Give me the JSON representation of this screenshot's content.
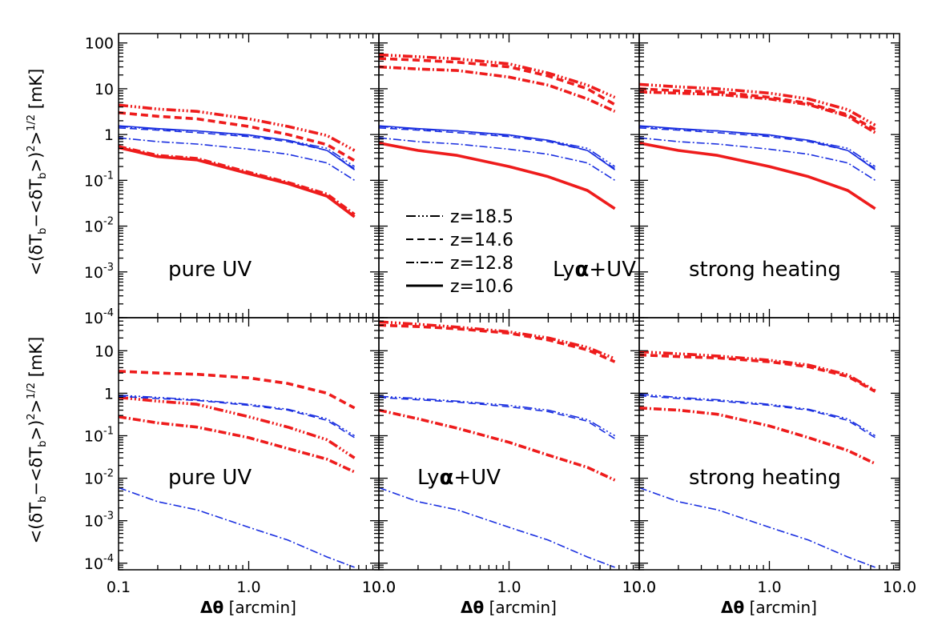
{
  "figure": {
    "ylabel": "<(δT",
    "ylabel_sub1": "b",
    "ylabel_mid": "−<δT",
    "ylabel_sub2": "b",
    "ylabel_tail": ">)",
    "ylabel_sup2": "2",
    "ylabel_end": ">",
    "ylabel_sup_half": "1/2",
    "ylabel_unit": "[mK]",
    "xlabel_symbol": "Δθ",
    "xlabel_unit": "[arcmin]"
  },
  "legend": {
    "placement": "top-middle panel, lower left",
    "entries": [
      {
        "label": "z=18.5",
        "style": "dash-triple-dot"
      },
      {
        "label": "z=14.6",
        "style": "dashed"
      },
      {
        "label": "z=12.8",
        "style": "dash-dot"
      },
      {
        "label": "z=10.6",
        "style": "solid"
      }
    ]
  },
  "colors": {
    "red": "#ee1c1c",
    "blue": "#1a2fe0",
    "frame": "#000000"
  },
  "x_axis": {
    "scale": "log",
    "range": [
      0.1,
      10.0
    ],
    "major_ticks": [
      0.1,
      1.0,
      10.0
    ],
    "tick_labels_per_panel": [
      [
        "0.1",
        "1.0",
        "10.0"
      ],
      [
        "10.0",
        "1.0",
        "10.0"
      ],
      [
        "10.0",
        "1.0",
        "10.0"
      ]
    ]
  },
  "y_axis": {
    "scale": "log",
    "top_row": {
      "range": [
        0.0001,
        160
      ],
      "ticks": [
        {
          "v": 100,
          "m": "100",
          "e": ""
        },
        {
          "v": 10,
          "m": "10",
          "e": ""
        },
        {
          "v": 1,
          "m": "1",
          "e": ""
        },
        {
          "v": 0.1,
          "m": "10",
          "e": "-1"
        },
        {
          "v": 0.01,
          "m": "10",
          "e": "-2"
        },
        {
          "v": 0.001,
          "m": "10",
          "e": "-3"
        },
        {
          "v": 0.0001,
          "m": "10",
          "e": "-4"
        }
      ]
    },
    "bottom_row": {
      "range": [
        7e-05,
        60
      ],
      "ticks": [
        {
          "v": 10,
          "m": "10",
          "e": ""
        },
        {
          "v": 1,
          "m": "1",
          "e": ""
        },
        {
          "v": 0.1,
          "m": "10",
          "e": "-1"
        },
        {
          "v": 0.01,
          "m": "10",
          "e": "-2"
        },
        {
          "v": 0.001,
          "m": "10",
          "e": "-3"
        },
        {
          "v": 0.0001,
          "m": "10",
          "e": "-4"
        }
      ]
    }
  },
  "chart_data": [
    {
      "type": "line",
      "panel": "top-left",
      "annotation": "pure UV",
      "x": [
        0.1,
        0.2,
        0.4,
        1.0,
        2.0,
        4.0,
        6.5
      ],
      "series": [
        {
          "z": "18.5",
          "color": "red",
          "width": "thick",
          "values": [
            4.4,
            3.6,
            3.2,
            2.2,
            1.5,
            0.95,
            0.45
          ]
        },
        {
          "z": "14.6",
          "color": "red",
          "width": "thick",
          "values": [
            3.0,
            2.5,
            2.2,
            1.5,
            1.0,
            0.6,
            0.27
          ]
        },
        {
          "z": "12.8",
          "color": "red",
          "width": "thick",
          "values": [
            0.55,
            0.35,
            0.3,
            0.15,
            0.09,
            0.05,
            0.018
          ]
        },
        {
          "z": "10.6",
          "color": "red",
          "width": "thick",
          "values": [
            0.52,
            0.33,
            0.28,
            0.14,
            0.085,
            0.045,
            0.016
          ]
        },
        {
          "z": "18.5",
          "color": "blue",
          "width": "thin",
          "values": [
            1.5,
            1.3,
            1.2,
            0.95,
            0.75,
            0.5,
            0.2
          ]
        },
        {
          "z": "14.6",
          "color": "blue",
          "width": "thin",
          "values": [
            1.4,
            1.25,
            1.1,
            0.9,
            0.7,
            0.45,
            0.18
          ]
        },
        {
          "z": "12.8",
          "color": "blue",
          "width": "thin",
          "values": [
            0.85,
            0.7,
            0.62,
            0.48,
            0.37,
            0.24,
            0.1
          ]
        },
        {
          "z": "10.6",
          "color": "blue",
          "width": "thin",
          "values": [
            1.55,
            1.35,
            1.2,
            0.98,
            0.75,
            0.45,
            0.17
          ]
        }
      ]
    },
    {
      "type": "line",
      "panel": "top-middle",
      "annotation": "Lyα+UV",
      "x": [
        0.1,
        0.2,
        0.4,
        1.0,
        2.0,
        4.0,
        6.5
      ],
      "series": [
        {
          "z": "18.5",
          "color": "red",
          "width": "thick",
          "values": [
            55,
            50,
            45,
            35,
            22,
            12,
            6.5
          ]
        },
        {
          "z": "14.6",
          "color": "red",
          "width": "thick",
          "values": [
            46,
            42,
            38,
            30,
            19,
            10,
            4.5
          ]
        },
        {
          "z": "12.8",
          "color": "red",
          "width": "thick",
          "values": [
            30,
            27,
            25,
            18,
            12,
            6,
            3.2
          ]
        },
        {
          "z": "10.6",
          "color": "red",
          "width": "thick",
          "values": [
            0.65,
            0.45,
            0.35,
            0.2,
            0.12,
            0.06,
            0.024
          ]
        },
        {
          "z": "18.5",
          "color": "blue",
          "width": "thin",
          "values": [
            1.5,
            1.3,
            1.2,
            0.95,
            0.75,
            0.5,
            0.2
          ]
        },
        {
          "z": "14.6",
          "color": "blue",
          "width": "thin",
          "values": [
            1.4,
            1.25,
            1.1,
            0.9,
            0.7,
            0.45,
            0.18
          ]
        },
        {
          "z": "12.8",
          "color": "blue",
          "width": "thin",
          "values": [
            0.85,
            0.7,
            0.62,
            0.48,
            0.37,
            0.24,
            0.1
          ]
        },
        {
          "z": "10.6",
          "color": "blue",
          "width": "thin",
          "values": [
            1.55,
            1.35,
            1.2,
            0.98,
            0.75,
            0.45,
            0.17
          ]
        }
      ]
    },
    {
      "type": "line",
      "panel": "top-right",
      "annotation": "strong heating",
      "x": [
        0.1,
        0.2,
        0.4,
        1.0,
        2.0,
        4.0,
        6.5
      ],
      "series": [
        {
          "z": "18.5",
          "color": "red",
          "width": "thick",
          "values": [
            12.5,
            11,
            10,
            8,
            6,
            3.5,
            1.6
          ]
        },
        {
          "z": "14.6",
          "color": "red",
          "width": "thick",
          "values": [
            10,
            9,
            8.5,
            6.5,
            4.8,
            2.7,
            1.3
          ]
        },
        {
          "z": "12.8",
          "color": "red",
          "width": "thick",
          "values": [
            8.5,
            8,
            7.5,
            6,
            4.5,
            2.5,
            1.1
          ]
        },
        {
          "z": "10.6",
          "color": "red",
          "width": "thick",
          "values": [
            0.65,
            0.45,
            0.35,
            0.2,
            0.12,
            0.06,
            0.024
          ]
        },
        {
          "z": "18.5",
          "color": "blue",
          "width": "thin",
          "values": [
            1.5,
            1.3,
            1.2,
            0.95,
            0.75,
            0.5,
            0.2
          ]
        },
        {
          "z": "14.6",
          "color": "blue",
          "width": "thin",
          "values": [
            1.4,
            1.25,
            1.1,
            0.9,
            0.7,
            0.45,
            0.18
          ]
        },
        {
          "z": "12.8",
          "color": "blue",
          "width": "thin",
          "values": [
            0.85,
            0.7,
            0.62,
            0.48,
            0.37,
            0.24,
            0.1
          ]
        },
        {
          "z": "10.6",
          "color": "blue",
          "width": "thin",
          "values": [
            1.55,
            1.35,
            1.2,
            0.98,
            0.75,
            0.45,
            0.17
          ]
        }
      ]
    },
    {
      "type": "line",
      "panel": "bottom-left",
      "annotation": "pure UV",
      "x": [
        0.1,
        0.2,
        0.4,
        1.0,
        2.0,
        4.0,
        6.5
      ],
      "series": [
        {
          "z": "14.6",
          "color": "red",
          "width": "thick",
          "values": [
            3.3,
            3.0,
            2.8,
            2.3,
            1.7,
            1.0,
            0.45
          ]
        },
        {
          "z": "18.5",
          "color": "red",
          "width": "thick",
          "values": [
            0.8,
            0.65,
            0.55,
            0.28,
            0.16,
            0.08,
            0.03
          ]
        },
        {
          "z": "12.8",
          "color": "red",
          "width": "thick",
          "values": [
            0.28,
            0.2,
            0.16,
            0.09,
            0.05,
            0.028,
            0.014
          ]
        },
        {
          "z": "18.5",
          "color": "blue",
          "width": "thin",
          "values": [
            0.9,
            0.8,
            0.7,
            0.55,
            0.42,
            0.25,
            0.1
          ]
        },
        {
          "z": "14.6",
          "color": "blue",
          "width": "thin",
          "values": [
            0.85,
            0.75,
            0.68,
            0.52,
            0.4,
            0.23,
            0.09
          ]
        },
        {
          "z": "12.8",
          "color": "blue",
          "width": "thin",
          "values": [
            0.006,
            0.0028,
            0.0018,
            0.0007,
            0.00035,
            0.00014,
            8e-05
          ]
        }
      ]
    },
    {
      "type": "line",
      "panel": "bottom-middle",
      "annotation": "Lyα+UV",
      "x": [
        0.1,
        0.2,
        0.4,
        1.0,
        2.0,
        4.0,
        6.5
      ],
      "series": [
        {
          "z": "18.5",
          "color": "red",
          "width": "thick",
          "values": [
            48,
            42,
            36,
            28,
            20,
            12,
            6.5
          ]
        },
        {
          "z": "14.6",
          "color": "red",
          "width": "thick",
          "values": [
            40,
            37,
            33,
            26,
            18,
            10.5,
            5.5
          ]
        },
        {
          "z": "12.8",
          "color": "red",
          "width": "thick",
          "values": [
            0.4,
            0.25,
            0.15,
            0.07,
            0.035,
            0.018,
            0.009
          ]
        },
        {
          "z": "18.5",
          "color": "blue",
          "width": "thin",
          "values": [
            0.85,
            0.75,
            0.65,
            0.52,
            0.4,
            0.24,
            0.1
          ]
        },
        {
          "z": "14.6",
          "color": "blue",
          "width": "thin",
          "values": [
            0.8,
            0.7,
            0.62,
            0.48,
            0.37,
            0.22,
            0.085
          ]
        },
        {
          "z": "12.8",
          "color": "blue",
          "width": "thin",
          "values": [
            0.006,
            0.0028,
            0.0018,
            0.0007,
            0.00035,
            0.00014,
            8e-05
          ]
        }
      ]
    },
    {
      "type": "line",
      "panel": "bottom-right",
      "annotation": "strong heating",
      "x": [
        0.1,
        0.2,
        0.4,
        1.0,
        2.0,
        4.0,
        6.5
      ],
      "series": [
        {
          "z": "18.5",
          "color": "red",
          "width": "thick",
          "values": [
            9.5,
            8.5,
            7.5,
            6.0,
            4.6,
            2.7,
            1.15
          ]
        },
        {
          "z": "14.6",
          "color": "red",
          "width": "thick",
          "values": [
            8.0,
            7.3,
            6.8,
            5.5,
            4.2,
            2.5,
            1.1
          ]
        },
        {
          "z": "12.8",
          "color": "red",
          "width": "thick",
          "values": [
            0.45,
            0.4,
            0.32,
            0.17,
            0.09,
            0.045,
            0.022
          ]
        },
        {
          "z": "18.5",
          "color": "blue",
          "width": "thin",
          "values": [
            0.95,
            0.8,
            0.7,
            0.55,
            0.42,
            0.25,
            0.1
          ]
        },
        {
          "z": "14.6",
          "color": "blue",
          "width": "thin",
          "values": [
            0.88,
            0.75,
            0.66,
            0.52,
            0.4,
            0.23,
            0.09
          ]
        },
        {
          "z": "12.8",
          "color": "blue",
          "width": "thin",
          "values": [
            0.006,
            0.0028,
            0.0018,
            0.0007,
            0.00035,
            0.00014,
            8e-05
          ]
        }
      ]
    }
  ]
}
